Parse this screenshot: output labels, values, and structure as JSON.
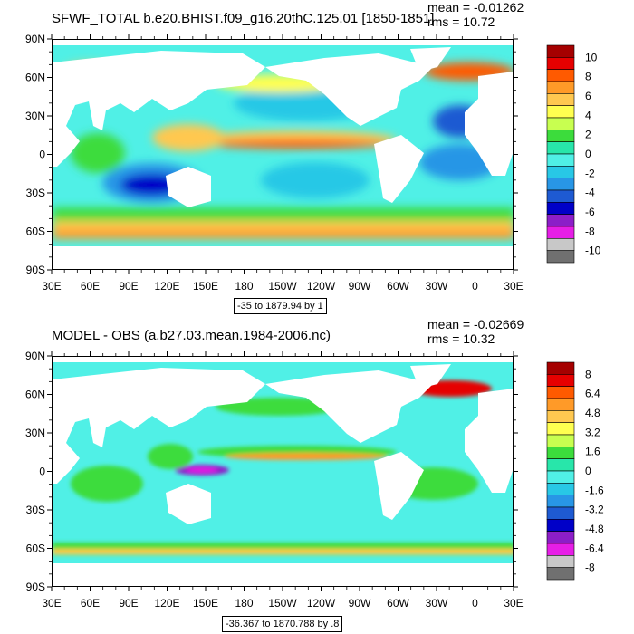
{
  "panels": [
    {
      "title": "SFWF_TOTAL b.e20.BHIST.f09_g16.20thC.125.01 [1850-1851]",
      "mean_label": "mean = -0.01262",
      "rms_label": "rms = 10.72",
      "range_label": "-35 to 1879.94 by 1",
      "colorbar_labels": [
        "10",
        "8",
        "6",
        "4",
        "2",
        "0",
        "-2",
        "-4",
        "-6",
        "-8",
        "-10"
      ],
      "colorbar_colors": [
        "#a50000",
        "#e60000",
        "#ff5a00",
        "#ff9a28",
        "#ffc850",
        "#ffff50",
        "#c8ff50",
        "#3cdc3c",
        "#28e6aa",
        "#50f0e6",
        "#28c8e6",
        "#2896e6",
        "#1e5ad2",
        "#0000c8",
        "#8c1ec8",
        "#e61ee6",
        "#c8c8c8",
        "#707070"
      ]
    },
    {
      "title": "MODEL - OBS (a.b27.03.mean.1984-2006.nc)",
      "mean_label": "mean = -0.02669",
      "rms_label": "rms = 10.32",
      "range_label": "-36.367 to 1870.788 by .8",
      "colorbar_labels": [
        "8",
        "6.4",
        "4.8",
        "3.2",
        "1.6",
        "0",
        "-1.6",
        "-3.2",
        "-4.8",
        "-6.4",
        "-8"
      ],
      "colorbar_colors": [
        "#a50000",
        "#e60000",
        "#ff5a00",
        "#ff9a28",
        "#ffc850",
        "#ffff50",
        "#c8ff50",
        "#3cdc3c",
        "#28e6aa",
        "#50f0e6",
        "#28c8e6",
        "#2896e6",
        "#1e5ad2",
        "#0000c8",
        "#8c1ec8",
        "#e61ee6",
        "#c8c8c8",
        "#707070"
      ]
    }
  ],
  "lat_labels": [
    "90N",
    "60N",
    "30N",
    "0",
    "30S",
    "60S",
    "90S"
  ],
  "lon_labels": [
    "30E",
    "60E",
    "90E",
    "120E",
    "150E",
    "180",
    "150W",
    "120W",
    "90W",
    "60W",
    "30W",
    "0",
    "30E"
  ]
}
